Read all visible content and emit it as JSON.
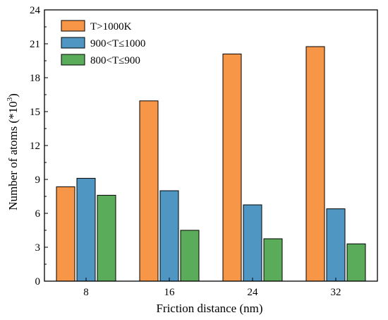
{
  "chart_data": {
    "type": "bar",
    "xlabel": "Friction distance (nm)",
    "ylabel": "Number of atoms (*10",
    "ylabel_sup": "3",
    "ylabel_close": ")",
    "categories": [
      "8",
      "16",
      "24",
      "32"
    ],
    "ylim": [
      0,
      24
    ],
    "yticks": [
      0,
      3,
      6,
      9,
      12,
      15,
      18,
      21,
      24
    ],
    "grid": false,
    "legend_position": "top-left",
    "series": [
      {
        "name": "T>1000K",
        "color": "#f79646",
        "values": [
          8.35,
          15.95,
          20.1,
          20.75
        ]
      },
      {
        "name": "900<T≤1000",
        "color": "#4f97c2",
        "values": [
          9.1,
          8.0,
          6.75,
          6.4
        ]
      },
      {
        "name": "800<T≤900",
        "color": "#5aab5a",
        "values": [
          7.6,
          4.5,
          3.75,
          3.3
        ]
      }
    ]
  }
}
